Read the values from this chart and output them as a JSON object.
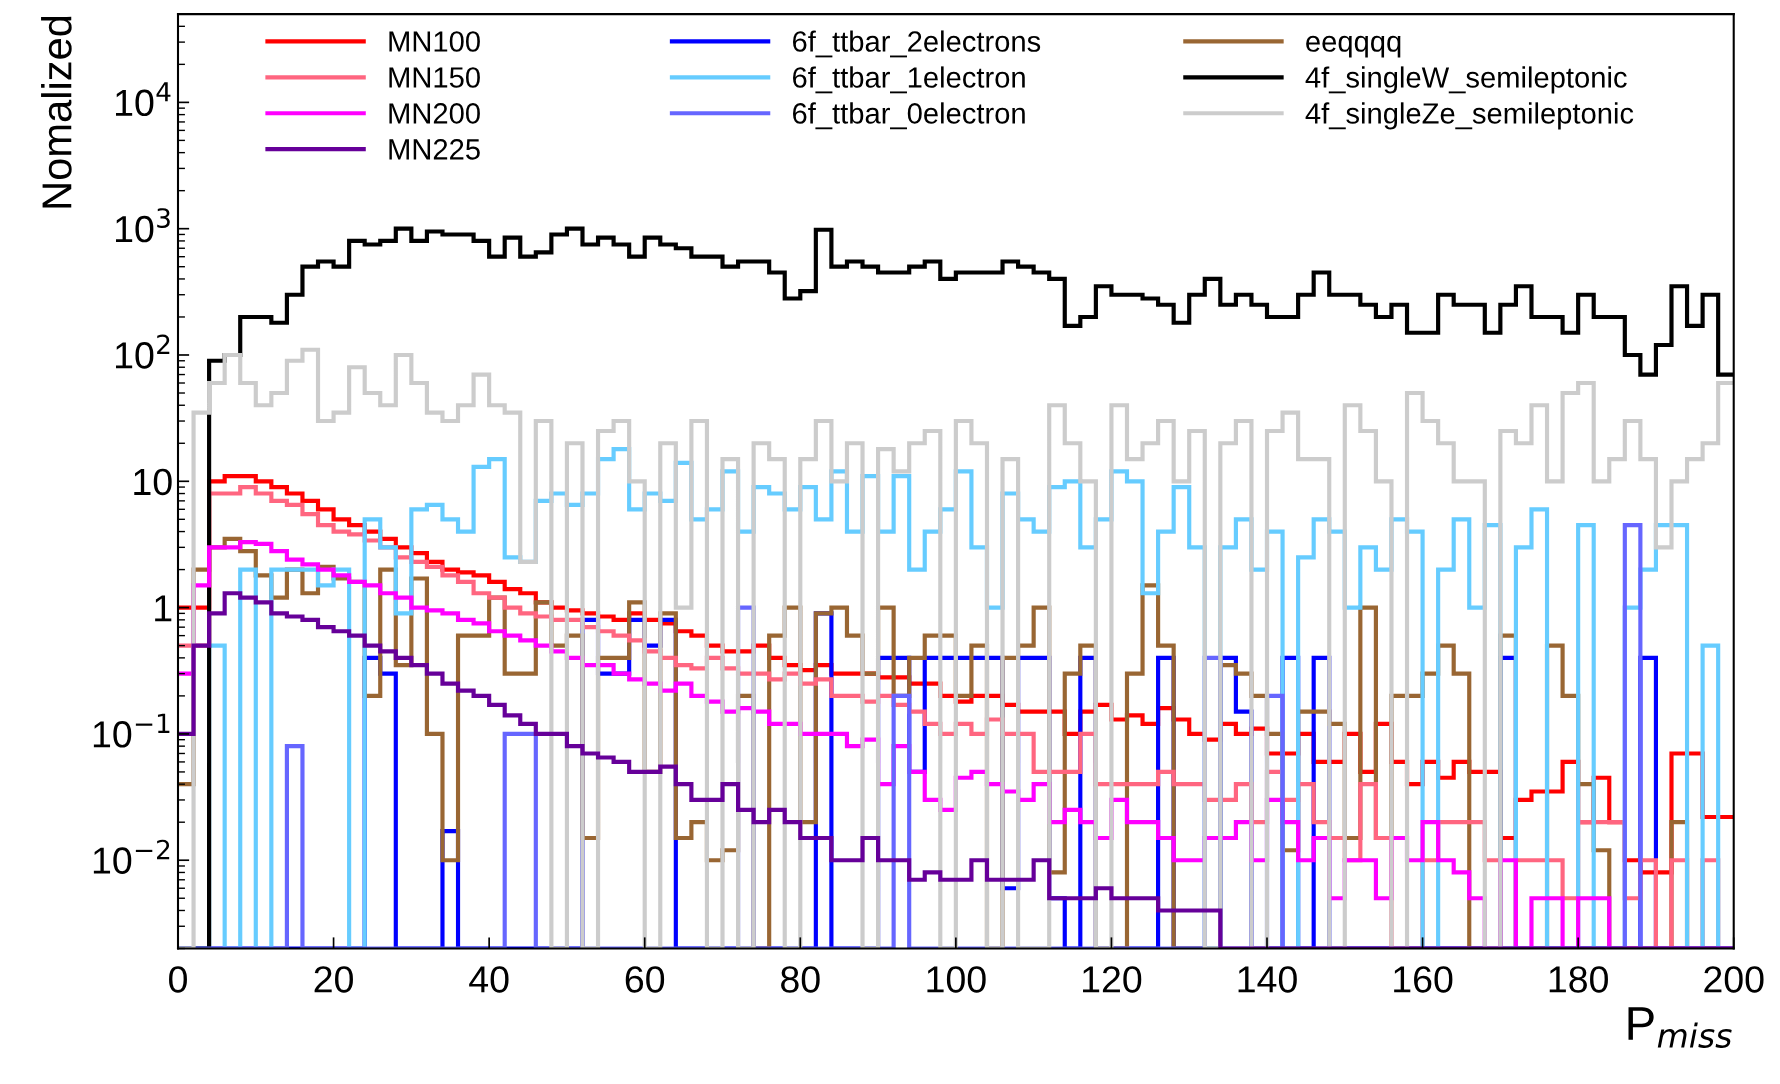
{
  "chart_data": {
    "type": "histogram",
    "xlabel": "P$_{miss}$",
    "ylabel": "Nomalized",
    "log": "y",
    "legend": "top",
    "grid": false,
    "bins": [
      0,
      2,
      4,
      6,
      8,
      10,
      12,
      14,
      16,
      18,
      20,
      22,
      24,
      26,
      28,
      30,
      32,
      34,
      36,
      38,
      40,
      42,
      44,
      46,
      48,
      50,
      52,
      54,
      56,
      58,
      60,
      62,
      64,
      66,
      68,
      70,
      72,
      74,
      76,
      78,
      80,
      82,
      84,
      86,
      88,
      90,
      92,
      94,
      96,
      98,
      100,
      102,
      104,
      106,
      108,
      110,
      112,
      114,
      116,
      118,
      120,
      122,
      124,
      126,
      128,
      130,
      132,
      134,
      136,
      138,
      140,
      142,
      144,
      146,
      148,
      150,
      152,
      154,
      156,
      158,
      160,
      162,
      164,
      166,
      168,
      170,
      172,
      174,
      176,
      178,
      180,
      182,
      184,
      186,
      188,
      190,
      192,
      194,
      196,
      198,
      200
    ],
    "xlim": [
      0,
      200
    ],
    "xticks": [
      0,
      20,
      40,
      60,
      80,
      100,
      120,
      140,
      160,
      180,
      200
    ],
    "ylim": [
      0.002,
      50000
    ],
    "yticks": [
      {
        "value": 0.01,
        "label": "10$^{−2}$"
      },
      {
        "value": 0.1,
        "label": "10$^{−1}$"
      },
      1,
      10,
      {
        "value": 100,
        "label": "10$^{2}$"
      },
      {
        "value": 1000,
        "label": "10$^{3}$"
      },
      {
        "value": 10000,
        "label": "10$^{4}$"
      }
    ],
    "series": [
      {
        "name": "MN100",
        "color": "#ff0000",
        "values": [
          1,
          1,
          10,
          11,
          11,
          10,
          9,
          8,
          7,
          6,
          5,
          4.5,
          4,
          3.5,
          3,
          2.7,
          2.3,
          2,
          1.9,
          1.8,
          1.6,
          1.4,
          1.3,
          1.1,
          1,
          0.95,
          0.9,
          0.85,
          0.8,
          0.9,
          0.8,
          0.75,
          0.65,
          0.6,
          0.5,
          0.45,
          0.45,
          0.5,
          0.4,
          0.35,
          0.32,
          0.35,
          0.3,
          0.3,
          0.3,
          0.28,
          0.28,
          0.25,
          0.25,
          0.2,
          0.18,
          0.2,
          0.2,
          0.17,
          0.15,
          0.15,
          0.15,
          0.1,
          0.15,
          0.17,
          0.13,
          0.14,
          0.12,
          0.16,
          0.13,
          0.1,
          0.09,
          0.12,
          0.1,
          0.11,
          0.07,
          0.07,
          0.1,
          0.06,
          0.06,
          0.1,
          0.05,
          0.12,
          0.06,
          0.04,
          0.06,
          0.045,
          0.06,
          0.05,
          0.05,
          0.015,
          0.03,
          0.035,
          0.035,
          0.06,
          0.02,
          0.045,
          0.02,
          0.01,
          0.008,
          0.008,
          0.07,
          0.07,
          0.022,
          0.022
        ]
      },
      {
        "name": "6f_ttbar_2electrons",
        "color": "#0000ff",
        "values": [
          null,
          null,
          null,
          null,
          null,
          null,
          null,
          null,
          null,
          null,
          null,
          null,
          0.4,
          0.3,
          null,
          null,
          null,
          0.017,
          null,
          null,
          null,
          null,
          null,
          null,
          null,
          null,
          0.8,
          0.3,
          0.3,
          0.8,
          0.5,
          0.8,
          null,
          null,
          null,
          null,
          null,
          null,
          null,
          null,
          null,
          0.9,
          null,
          null,
          null,
          0.4,
          0.4,
          0.05,
          0.4,
          0.4,
          0.4,
          0.4,
          0.4,
          0.006,
          0.4,
          0.4,
          0.005,
          null,
          0.4,
          null,
          null,
          null,
          null,
          0.4,
          null,
          null,
          null,
          0.4,
          0.15,
          null,
          null,
          0.4,
          null,
          0.4,
          null,
          null,
          null,
          null,
          null,
          null,
          null,
          null,
          null,
          null,
          null,
          0.4,
          null,
          null,
          null,
          null,
          null,
          null,
          null,
          null,
          0.4,
          null,
          null,
          null,
          null,
          null
        ]
      },
      {
        "name": "eeqqqq",
        "color": "#996633",
        "values": [
          0.04,
          2,
          3,
          3.5,
          2.8,
          1.8,
          1.2,
          2,
          1.3,
          2.1,
          1.7,
          1.6,
          0.2,
          2,
          0.35,
          1.7,
          0.1,
          0.01,
          0.6,
          0.6,
          1.2,
          0.3,
          0.3,
          1.1,
          0.5,
          0.6,
          0.015,
          0.4,
          0.4,
          1.1,
          0.05,
          0.9,
          0.015,
          0.02,
          0.01,
          0.012,
          0.2,
          null,
          0.6,
          1,
          0.02,
          0.9,
          1,
          0.6,
          0.3,
          1,
          0.2,
          0.4,
          0.6,
          0.6,
          0.2,
          0.5,
          null,
          0.4,
          0.5,
          1,
          0.008,
          0.3,
          0.5,
          null,
          null,
          0.3,
          1.5,
          0.5,
          null,
          null,
          null,
          0.35,
          0.3,
          0.2,
          0.1,
          0.012,
          0.15,
          0.15,
          0.12,
          0.015,
          1,
          0.015,
          0.2,
          0.2,
          0.3,
          0.5,
          0.3,
          null,
          null,
          0.6,
          null,
          null,
          0.5,
          0.2,
          0.04,
          0.012,
          null,
          null,
          null,
          null,
          0.02,
          null,
          null,
          null
        ]
      },
      {
        "name": "MN150",
        "color": "#ff6680",
        "values": [
          0.5,
          0.5,
          8,
          8,
          9,
          8,
          7,
          6.5,
          5.5,
          4.5,
          4,
          3.8,
          3.4,
          3,
          2.5,
          2.3,
          2.1,
          1.8,
          1.6,
          1.3,
          1.2,
          1,
          0.9,
          0.85,
          0.8,
          0.8,
          0.7,
          0.65,
          0.6,
          0.55,
          0.45,
          0.4,
          0.35,
          0.33,
          0.4,
          0.33,
          0.3,
          0.3,
          0.27,
          0.3,
          0.25,
          0.27,
          0.2,
          0.2,
          0.18,
          0.2,
          0.17,
          0.15,
          0.12,
          0.1,
          0.12,
          0.1,
          0.13,
          0.1,
          0.1,
          0.05,
          0.05,
          0.05,
          0.1,
          0.04,
          0.04,
          0.04,
          0.04,
          0.05,
          0.04,
          0.04,
          0.03,
          0.03,
          0.04,
          0.02,
          0.05,
          0.03,
          0.04,
          0.02,
          0.015,
          0.01,
          0.04,
          0.015,
          null,
          null,
          0.01,
          0.02,
          0.02,
          0.02,
          0.01,
          null,
          0.01,
          0.01,
          0.01,
          0.005,
          0.02,
          0.02,
          0.02,
          0.005,
          0.01,
          null,
          0.01,
          null,
          0.01,
          null
        ]
      },
      {
        "name": "6f_ttbar_1electron",
        "color": "#66ccff",
        "values": [
          null,
          null,
          0.5,
          null,
          2,
          null,
          2,
          2,
          2,
          1.5,
          2,
          null,
          5,
          3,
          0.9,
          6,
          6.5,
          5,
          4,
          13,
          15,
          2.5,
          2.3,
          7,
          8,
          6.5,
          8,
          15,
          18,
          6,
          8,
          7,
          14,
          5,
          6,
          12,
          4,
          9,
          8,
          6,
          9,
          5,
          12,
          4,
          11,
          4,
          11,
          2,
          4,
          6,
          12,
          3,
          1,
          8,
          5,
          4,
          9,
          10,
          3,
          5,
          12,
          10,
          1.3,
          4,
          9,
          3,
          null,
          3,
          5,
          2,
          4,
          null,
          2.5,
          5,
          4,
          1,
          3,
          2,
          5,
          4,
          null,
          2,
          5,
          1,
          4.5,
          null,
          3,
          6,
          null,
          null,
          4.5,
          null,
          null,
          1,
          2,
          4.5,
          4.5,
          null,
          0.5,
          null
        ]
      },
      {
        "name": "4f_singleW_semileptonic",
        "color": "#000000",
        "values": [
          null,
          null,
          90,
          100,
          200,
          200,
          180,
          300,
          500,
          550,
          500,
          800,
          750,
          800,
          1000,
          800,
          950,
          900,
          900,
          800,
          600,
          850,
          600,
          650,
          900,
          1000,
          750,
          850,
          750,
          600,
          850,
          750,
          700,
          600,
          600,
          500,
          550,
          550,
          450,
          280,
          320,
          980,
          500,
          550,
          500,
          450,
          450,
          500,
          550,
          400,
          450,
          450,
          450,
          550,
          500,
          450,
          400,
          170,
          200,
          350,
          300,
          300,
          280,
          250,
          180,
          300,
          400,
          250,
          300,
          250,
          200,
          200,
          300,
          450,
          300,
          300,
          250,
          200,
          250,
          150,
          150,
          300,
          250,
          250,
          150,
          250,
          350,
          200,
          200,
          150,
          300,
          200,
          200,
          100,
          70,
          120,
          350,
          170,
          300,
          70
        ]
      },
      {
        "name": "MN200",
        "color": "#ff00ff",
        "values": [
          0.3,
          1.5,
          3,
          3,
          3.3,
          3.2,
          2.8,
          2.4,
          2.2,
          2,
          1.8,
          1.6,
          1.5,
          1.3,
          1.2,
          1,
          0.95,
          0.9,
          0.8,
          0.75,
          0.65,
          0.6,
          0.55,
          0.5,
          0.45,
          0.4,
          0.35,
          0.35,
          0.3,
          0.27,
          0.25,
          0.22,
          0.25,
          0.2,
          0.18,
          0.15,
          0.16,
          0.15,
          0.12,
          0.12,
          0.1,
          0.1,
          0.1,
          0.08,
          0.09,
          0.04,
          0.08,
          0.05,
          0.03,
          0.025,
          0.045,
          0.05,
          0.04,
          0.035,
          0.03,
          0.04,
          0.02,
          0.025,
          0.02,
          0.015,
          0.03,
          0.02,
          0.02,
          0.015,
          0.01,
          0.01,
          0.015,
          0.015,
          0.02,
          0.01,
          0.03,
          0.02,
          0.01,
          0.015,
          0.005,
          0.01,
          0.01,
          0.005,
          0.015,
          0.01,
          0.02,
          0.01,
          0.008,
          0.005,
          null,
          0.01,
          null,
          0.005,
          0.005,
          null,
          0.005,
          0.005,
          null,
          null,
          null,
          null,
          null,
          null,
          null,
          null
        ]
      },
      {
        "name": "6f_ttbar_0electron",
        "color": "#6666ff",
        "values": [
          null,
          null,
          null,
          null,
          null,
          null,
          null,
          0.08,
          null,
          null,
          null,
          null,
          null,
          null,
          null,
          null,
          null,
          null,
          null,
          null,
          null,
          0.1,
          0.1,
          null,
          null,
          null,
          null,
          null,
          null,
          null,
          null,
          null,
          null,
          null,
          null,
          null,
          1,
          null,
          null,
          null,
          null,
          null,
          null,
          null,
          null,
          null,
          0.2,
          null,
          null,
          null,
          null,
          null,
          null,
          null,
          null,
          null,
          null,
          null,
          null,
          null,
          null,
          null,
          null,
          null,
          null,
          null,
          0.4,
          null,
          null,
          null,
          0.2,
          null,
          null,
          null,
          null,
          null,
          null,
          null,
          null,
          null,
          null,
          null,
          null,
          null,
          null,
          null,
          null,
          null,
          null,
          null,
          null,
          null,
          null,
          4.5,
          null,
          null,
          null,
          null,
          null,
          null
        ]
      },
      {
        "name": "4f_singleZe_semileptonic",
        "color": "#cccccc",
        "values": [
          null,
          35,
          60,
          100,
          60,
          40,
          50,
          90,
          110,
          30,
          35,
          80,
          50,
          40,
          100,
          60,
          35,
          30,
          40,
          70,
          40,
          35,
          2.3,
          30,
          null,
          20,
          null,
          25,
          30,
          10,
          null,
          20,
          1,
          30,
          null,
          15,
          null,
          20,
          15,
          null,
          15,
          30,
          10,
          20,
          null,
          18,
          12,
          20,
          25,
          null,
          30,
          20,
          null,
          15,
          null,
          null,
          40,
          20,
          10,
          null,
          40,
          15,
          20,
          30,
          10,
          25,
          null,
          20,
          30,
          null,
          25,
          35,
          15,
          15,
          null,
          40,
          25,
          10,
          null,
          50,
          30,
          20,
          10,
          10,
          null,
          25,
          20,
          40,
          10,
          50,
          60,
          10,
          15,
          30,
          15,
          3,
          10,
          15,
          20,
          60
        ]
      },
      {
        "name": "MN225",
        "color": "#660099",
        "values": [
          0.1,
          0.5,
          0.9,
          1.3,
          1.2,
          1.1,
          0.9,
          0.85,
          0.8,
          0.7,
          0.65,
          0.6,
          0.5,
          0.45,
          0.4,
          0.35,
          0.3,
          0.25,
          0.22,
          0.2,
          0.17,
          0.14,
          0.12,
          0.1,
          0.1,
          0.08,
          0.07,
          0.065,
          0.06,
          0.05,
          0.05,
          0.055,
          0.04,
          0.03,
          0.03,
          0.04,
          0.025,
          0.02,
          0.025,
          0.02,
          0.015,
          0.015,
          0.01,
          0.01,
          0.015,
          0.01,
          0.01,
          0.007,
          0.008,
          0.007,
          0.007,
          0.01,
          0.007,
          0.007,
          0.007,
          0.01,
          0.005,
          0.005,
          0.005,
          0.006,
          0.005,
          0.005,
          0.005,
          0.004,
          0.004,
          0.004,
          0.004,
          null,
          null,
          null,
          null,
          null,
          null,
          null,
          null,
          null,
          null,
          null,
          null,
          null,
          null,
          null,
          null,
          null,
          null,
          null,
          null,
          null,
          null,
          null,
          null,
          null,
          null,
          null,
          null,
          null,
          null,
          null,
          null,
          null
        ]
      }
    ]
  }
}
